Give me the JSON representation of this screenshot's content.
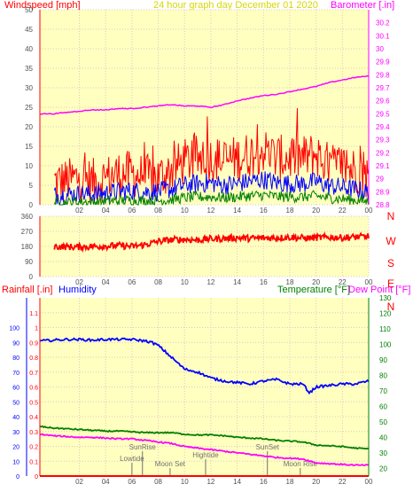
{
  "title": "24 hour graph day   December 01 2020",
  "colors": {
    "plot_bg": "#ffffc0",
    "grid": "#e0c8c8",
    "tick": "#505050",
    "wind_max": "#ff0000",
    "wind_avg": "#0000ff",
    "wind_min": "#008000",
    "barometer": "#ff00ff",
    "direction": "#ff0000",
    "humidity": "#0000ff",
    "temperature": "#008000",
    "dewpoint": "#ff00ff",
    "rain": "#ff0000",
    "ann": "#707070",
    "axis_left": "#ff0000",
    "axis_right": "#ff00ff",
    "axis_green": "#008000",
    "axis_blue": "#0000ff"
  },
  "chart_data": [
    {
      "type": "line",
      "name": "wind-baro",
      "ylabel": "Windspeed [mph]",
      "y2label": "Barometer [.in]",
      "ylim": [
        0,
        50
      ],
      "y2lim": [
        28.8,
        30.3
      ],
      "yticks": [
        "0",
        "5",
        "10",
        "15",
        "20",
        "25",
        "30",
        "35",
        "40",
        "45",
        "50"
      ],
      "y2ticks": [
        "28.8",
        "28.9",
        "29",
        "29.1",
        "29.2",
        "29.3",
        "29.4",
        "29.5",
        "29.6",
        "29.7",
        "29.8",
        "29.9",
        "30",
        "30.1",
        "30.2"
      ],
      "xticks": [
        "02",
        "04",
        "06",
        "08",
        "10",
        "12",
        "14",
        "16",
        "18",
        "20",
        "22",
        "00"
      ],
      "series": [
        {
          "key": "wind_max",
          "x": [
            0,
            1,
            2,
            3,
            4,
            5,
            6,
            7,
            8,
            9,
            10,
            11,
            12,
            13,
            14,
            15,
            16,
            17,
            18,
            19,
            20,
            21,
            22,
            23,
            24
          ],
          "y": [
            6,
            6,
            7,
            6,
            7,
            8,
            8,
            7,
            7,
            9,
            11,
            12,
            12,
            11,
            12,
            13,
            14,
            12,
            12,
            12,
            13,
            10,
            10,
            9,
            7
          ]
        },
        {
          "key": "wind_avg",
          "x": [
            0,
            1,
            2,
            3,
            4,
            5,
            6,
            7,
            8,
            9,
            10,
            11,
            12,
            13,
            14,
            15,
            16,
            17,
            18,
            19,
            20,
            21,
            22,
            23,
            24
          ],
          "y": [
            2.5,
            2.6,
            2.8,
            2.7,
            3,
            3.4,
            3.6,
            3.3,
            3.4,
            4,
            5,
            5.5,
            5.6,
            5,
            5.4,
            6,
            6.5,
            5.6,
            5.4,
            5.4,
            6,
            4.8,
            4.5,
            4,
            3
          ]
        },
        {
          "key": "wind_min",
          "x": [
            0,
            1,
            2,
            3,
            4,
            5,
            6,
            7,
            8,
            9,
            10,
            11,
            12,
            13,
            14,
            15,
            16,
            17,
            18,
            19,
            20,
            21,
            22,
            23,
            24
          ],
          "y": [
            0.5,
            0.5,
            0.8,
            0.6,
            0.9,
            1,
            1.2,
            1,
            1,
            1.3,
            1.8,
            2,
            2,
            1.8,
            2,
            2.3,
            2.5,
            2.1,
            2,
            2,
            2.3,
            1.7,
            1.5,
            1.2,
            0.8
          ]
        },
        {
          "key": "barometer",
          "axis": "y2",
          "x": [
            -1,
            0,
            1,
            2,
            3,
            4,
            5,
            6,
            7,
            8,
            9,
            10,
            11,
            12,
            13,
            14,
            15,
            16,
            17,
            18,
            19,
            20,
            21,
            22,
            23,
            24
          ],
          "y": [
            29.5,
            29.5,
            29.51,
            29.52,
            29.53,
            29.53,
            29.54,
            29.54,
            29.55,
            29.56,
            29.57,
            29.56,
            29.56,
            29.55,
            29.57,
            29.6,
            29.62,
            29.64,
            29.65,
            29.67,
            29.69,
            29.71,
            29.74,
            29.76,
            29.78,
            29.79
          ]
        }
      ]
    },
    {
      "type": "line",
      "name": "wind-direction",
      "ylim": [
        0,
        360
      ],
      "yticks": [
        "0",
        "90",
        "180",
        "270",
        "360"
      ],
      "direction_labels": [
        "N",
        "W",
        "S",
        "E",
        "N"
      ],
      "xticks": [
        "02",
        "04",
        "06",
        "08",
        "10",
        "12",
        "14",
        "16",
        "18",
        "20",
        "22",
        "00"
      ],
      "series": [
        {
          "key": "direction",
          "x": [
            -1,
            0,
            1,
            2,
            3,
            4,
            5,
            6,
            7,
            8,
            9,
            10,
            11,
            12,
            13,
            14,
            15,
            16,
            17,
            18,
            19,
            20,
            21,
            22,
            23,
            24
          ],
          "y": [
            185,
            180,
            178,
            176,
            180,
            182,
            185,
            180,
            190,
            210,
            220,
            222,
            218,
            225,
            228,
            232,
            228,
            230,
            232,
            235,
            230,
            232,
            235,
            232,
            236,
            240
          ]
        }
      ]
    },
    {
      "type": "line",
      "name": "temp-humidity-rain",
      "ylabel": "Rainfall [.in]",
      "ylabel2": "Humidity",
      "y2label": "Temperature [°F]",
      "y2label2": "Dew Point [°F]",
      "ylim": [
        0,
        1.2
      ],
      "yticks": [
        "0",
        "0.1",
        "0.2",
        "0.3",
        "0.4",
        "0.5",
        "0.6",
        "0.7",
        "0.8",
        "0.9",
        "1",
        "1.1"
      ],
      "humidity_ticks": [
        "0",
        "10",
        "20",
        "30",
        "40",
        "50",
        "60",
        "70",
        "80",
        "90",
        "100"
      ],
      "y2lim": [
        15,
        130
      ],
      "y2ticks": [
        "20",
        "30",
        "40",
        "50",
        "60",
        "70",
        "80",
        "90",
        "100",
        "110",
        "120",
        "130"
      ],
      "xticks": [
        "02",
        "04",
        "06",
        "08",
        "10",
        "12",
        "14",
        "16",
        "18",
        "20",
        "22",
        "00"
      ],
      "series": [
        {
          "key": "humidity",
          "axis": "hum",
          "x": [
            -1,
            0,
            1,
            2,
            3,
            4,
            5,
            6,
            7,
            7.5,
            8,
            9,
            10,
            11,
            12,
            13,
            14,
            15,
            16,
            17,
            18,
            19,
            19.5,
            20,
            21,
            22,
            23,
            24
          ],
          "y": [
            91,
            91.5,
            92,
            92,
            91.5,
            92,
            92,
            92,
            91,
            90,
            88,
            80,
            72,
            70,
            66,
            64,
            63,
            62,
            64,
            65,
            62,
            62,
            56,
            60,
            61,
            62,
            62,
            64
          ]
        },
        {
          "key": "temperature",
          "axis": "y2",
          "x": [
            -1,
            0,
            1,
            2,
            3,
            4,
            5,
            6,
            7,
            8,
            9,
            10,
            11,
            12,
            13,
            14,
            15,
            16,
            17,
            18,
            19,
            20,
            21,
            22,
            23,
            24
          ],
          "y": [
            47,
            46,
            45.5,
            45,
            44.5,
            44,
            44,
            43.5,
            43,
            43,
            43,
            42,
            41.5,
            41.5,
            41,
            40,
            39.5,
            39,
            38,
            37.5,
            37,
            35,
            34.5,
            34,
            33,
            32.5
          ]
        },
        {
          "key": "dewpoint",
          "axis": "y2",
          "x": [
            -1,
            0,
            1,
            2,
            3,
            4,
            5,
            6,
            7,
            8,
            9,
            10,
            11,
            12,
            13,
            14,
            15,
            16,
            17,
            18,
            19,
            20,
            21,
            22,
            23,
            24
          ],
          "y": [
            42,
            41,
            40.5,
            40,
            40,
            39.5,
            39,
            39,
            38,
            37,
            36,
            34,
            33,
            32,
            31,
            30,
            29,
            28,
            27,
            26.5,
            26,
            23.5,
            23,
            22.5,
            22,
            22
          ]
        },
        {
          "key": "rain",
          "x": [
            -1,
            24
          ],
          "y": [
            0,
            0
          ]
        }
      ],
      "annotations": [
        {
          "label": "SunRise",
          "x": 6.8
        },
        {
          "label": "Lowtide",
          "x": 6.0
        },
        {
          "label": "Moon Set",
          "x": 8.9
        },
        {
          "label": "Hightide",
          "x": 11.6
        },
        {
          "label": "SunSet",
          "x": 16.3
        },
        {
          "label": "Moon Rise",
          "x": 18.8
        }
      ]
    }
  ]
}
